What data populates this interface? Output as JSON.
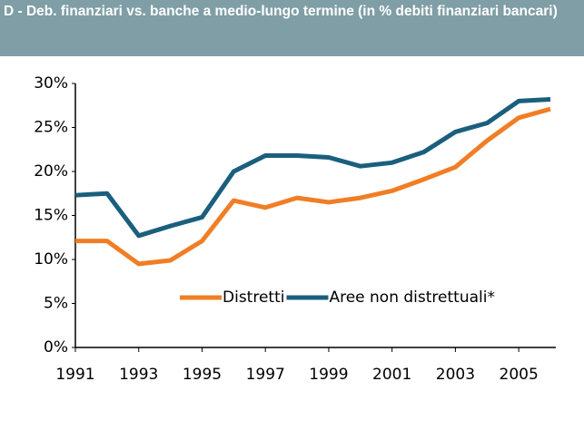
{
  "chart_data": {
    "type": "line",
    "title": "D - Deb. finanziari vs. banche a medio-lungo termine  (in % debiti finanziari bancari)",
    "x": [
      1991,
      1992,
      1993,
      1994,
      1995,
      1996,
      1997,
      1998,
      1999,
      2000,
      2001,
      2002,
      2003,
      2004,
      2005,
      2006
    ],
    "series": [
      {
        "name": "Distretti",
        "color": "#f07e26",
        "values": [
          12.1,
          12.1,
          9.5,
          9.9,
          12.1,
          16.7,
          15.9,
          17.0,
          16.5,
          17.0,
          17.8,
          19.1,
          20.5,
          23.5,
          26.1,
          27.1
        ]
      },
      {
        "name": "Aree non distrettuali*",
        "color": "#1a5f7d",
        "values": [
          17.3,
          17.5,
          12.7,
          13.8,
          14.8,
          20.0,
          21.8,
          21.8,
          21.6,
          20.6,
          21.0,
          22.2,
          24.5,
          25.5,
          28.0,
          28.2
        ]
      }
    ],
    "xlim": [
      1991,
      2006
    ],
    "xticks": [
      1991,
      1993,
      1995,
      1997,
      1999,
      2001,
      2003,
      2005
    ],
    "ylim": [
      0,
      30
    ],
    "yticks": [
      {
        "value": 0,
        "label": "0%"
      },
      {
        "value": 5,
        "label": "5%"
      },
      {
        "value": 10,
        "label": "10%"
      },
      {
        "value": 15,
        "label": "15%"
      },
      {
        "value": 20,
        "label": "20%"
      },
      {
        "value": 25,
        "label": "25%"
      },
      {
        "value": 30,
        "label": "30%"
      }
    ],
    "grid": false,
    "legend": "bottom-center"
  }
}
